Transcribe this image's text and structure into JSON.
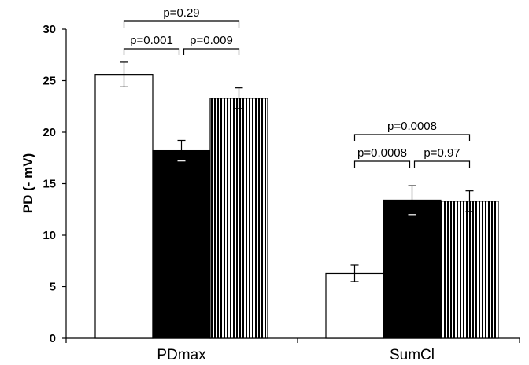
{
  "chart_data": {
    "type": "bar",
    "categories": [
      "PDmax",
      "SumCl"
    ],
    "ylabel": "PD (- mV)",
    "xlabel": "",
    "title": "",
    "ylim": [
      0,
      30
    ],
    "yticks": [
      "0",
      "5",
      "10",
      "15",
      "20",
      "25",
      "30"
    ],
    "grid": false,
    "series": [
      {
        "fill": "white",
        "values": [
          25.6,
          6.3
        ],
        "errors": [
          1.2,
          0.8
        ]
      },
      {
        "fill": "black",
        "values": [
          18.2,
          13.4
        ],
        "errors": [
          1.0,
          1.4
        ]
      },
      {
        "fill": "vertical-stripes",
        "values": [
          23.3,
          13.3
        ],
        "errors": [
          1.0,
          1.0
        ]
      }
    ],
    "annotations": [
      {
        "group": 0,
        "from": 0,
        "to": 1,
        "text": "p=0.001",
        "level": 0
      },
      {
        "group": 0,
        "from": 1,
        "to": 2,
        "text": "p=0.009",
        "level": 0
      },
      {
        "group": 0,
        "from": 0,
        "to": 2,
        "text": "p=0.29",
        "level": 1
      },
      {
        "group": 1,
        "from": 0,
        "to": 1,
        "text": "p=0.0008",
        "level": 0
      },
      {
        "group": 1,
        "from": 1,
        "to": 2,
        "text": "p=0.97",
        "level": 0
      },
      {
        "group": 1,
        "from": 0,
        "to": 2,
        "text": "p=0.0008",
        "level": 1
      }
    ]
  }
}
